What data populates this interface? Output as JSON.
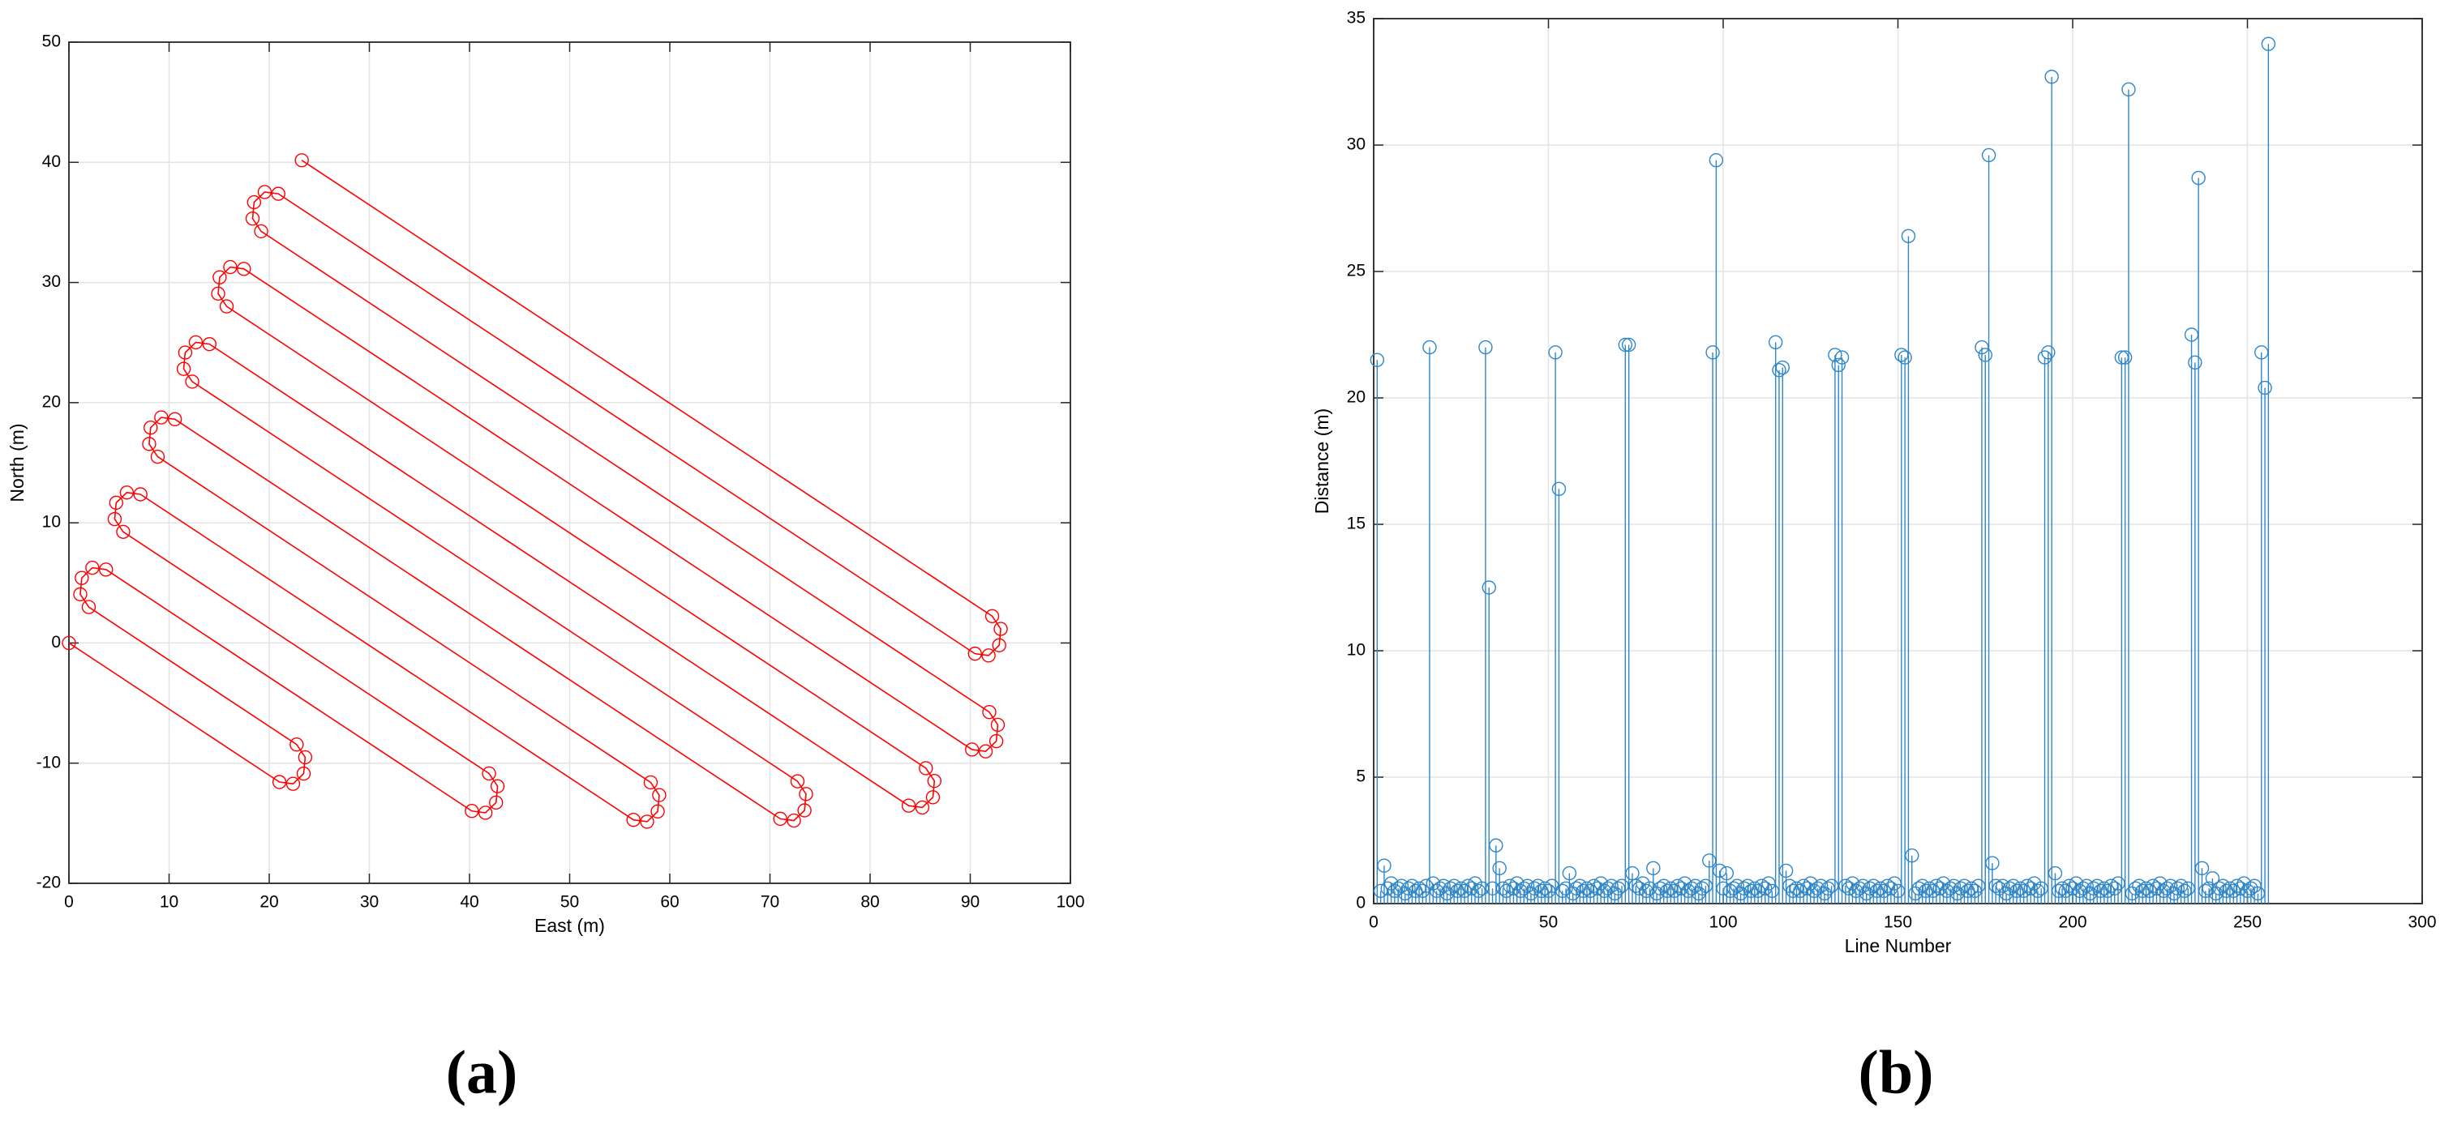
{
  "chart_data": [
    {
      "type": "line",
      "caption": "(a)",
      "x_label": "East (m)",
      "y_label": "North (m)",
      "color": "#ff0000",
      "marker": "circle",
      "grid": true,
      "x": [
        0,
        21.02,
        22.38,
        23.44,
        23.59,
        22.74,
        1.98,
        1.13,
        1.28,
        2.34,
        3.7,
        40.23,
        41.59,
        42.65,
        42.8,
        41.95,
        5.42,
        4.57,
        4.72,
        5.78,
        7.14,
        56.37,
        57.73,
        58.79,
        58.94,
        58.09,
        8.86,
        8.01,
        8.16,
        9.22,
        10.58,
        71.03,
        72.39,
        73.45,
        73.6,
        72.75,
        12.31,
        11.46,
        11.61,
        12.67,
        14.03,
        83.85,
        85.21,
        86.27,
        86.42,
        85.57,
        15.75,
        14.9,
        15.05,
        16.11,
        17.47,
        90.18,
        91.54,
        92.6,
        92.75,
        91.9,
        19.19,
        18.34,
        18.49,
        19.55,
        20.91,
        90.47,
        91.83,
        92.89,
        93.04,
        92.19,
        23.25
      ],
      "y": [
        0,
        -11.57,
        -11.72,
        -10.87,
        -9.51,
        -8.45,
        2.99,
        4.05,
        5.41,
        6.26,
        6.11,
        -13.98,
        -14.13,
        -13.28,
        -11.92,
        -10.86,
        9.25,
        10.31,
        11.67,
        12.52,
        12.37,
        -14.72,
        -14.87,
        -14.02,
        -12.66,
        -11.6,
        15.5,
        16.56,
        17.92,
        18.77,
        18.62,
        -14.63,
        -14.78,
        -13.93,
        -12.57,
        -11.51,
        21.75,
        22.81,
        24.17,
        25.02,
        24.87,
        -13.54,
        -13.69,
        -12.84,
        -11.48,
        -10.42,
        28.01,
        29.07,
        30.43,
        31.28,
        31.13,
        -8.87,
        -9.02,
        -8.17,
        -6.81,
        -5.75,
        34.26,
        35.32,
        36.68,
        37.53,
        37.38,
        -0.89,
        -1.04,
        -0.19,
        1.17,
        2.23,
        40.17
      ],
      "xlim": [
        0,
        100
      ],
      "xticks": [
        0,
        10,
        20,
        30,
        40,
        50,
        60,
        70,
        80,
        90,
        100
      ],
      "ylim": [
        -20,
        50
      ],
      "yticks": [
        -20,
        -10,
        0,
        10,
        20,
        30,
        40,
        50
      ]
    },
    {
      "type": "stem",
      "caption": "(b)",
      "x_label": "Line Number",
      "y_label": "Distance (m)",
      "color": "#2e86c9",
      "marker": "circle",
      "grid": true,
      "x": [
        1,
        2,
        3,
        4,
        5,
        6,
        7,
        8,
        9,
        10,
        11,
        12,
        13,
        14,
        15,
        16,
        17,
        18,
        19,
        20,
        21,
        22,
        23,
        24,
        25,
        26,
        27,
        28,
        29,
        30,
        31,
        32,
        33,
        34,
        35,
        36,
        37,
        38,
        39,
        40,
        41,
        42,
        43,
        44,
        45,
        46,
        47,
        48,
        49,
        50,
        51,
        52,
        53,
        54,
        55,
        56,
        57,
        58,
        59,
        60,
        61,
        62,
        63,
        64,
        65,
        66,
        67,
        68,
        69,
        70,
        71,
        72,
        73,
        74,
        75,
        76,
        77,
        78,
        79,
        80,
        81,
        82,
        83,
        84,
        85,
        86,
        87,
        88,
        89,
        90,
        91,
        92,
        93,
        94,
        95,
        96,
        97,
        98,
        99,
        100,
        101,
        102,
        103,
        104,
        105,
        106,
        107,
        108,
        109,
        110,
        111,
        112,
        113,
        114,
        115,
        116,
        117,
        118,
        119,
        120,
        121,
        122,
        123,
        124,
        125,
        126,
        127,
        128,
        129,
        130,
        131,
        132,
        133,
        134,
        135,
        136,
        137,
        138,
        139,
        140,
        141,
        142,
        143,
        144,
        145,
        146,
        147,
        148,
        149,
        150,
        151,
        152,
        153,
        154,
        155,
        156,
        157,
        158,
        159,
        160,
        161,
        162,
        163,
        164,
        165,
        166,
        167,
        168,
        169,
        170,
        171,
        172,
        173,
        174,
        175,
        176,
        177,
        178,
        179,
        180,
        181,
        182,
        183,
        184,
        185,
        186,
        187,
        188,
        189,
        190,
        191,
        192,
        193,
        194,
        195,
        196,
        197,
        198,
        199,
        200,
        201,
        202,
        203,
        204,
        205,
        206,
        207,
        208,
        209,
        210,
        211,
        212,
        213,
        214,
        215,
        216,
        217,
        218,
        219,
        220,
        221,
        222,
        223,
        224,
        225,
        226,
        227,
        228,
        229,
        230,
        231,
        232,
        233,
        234,
        235,
        236,
        237,
        238,
        239,
        240,
        241,
        242,
        243,
        244,
        245,
        246,
        247,
        248,
        249,
        250,
        251,
        252,
        253,
        254,
        255,
        256
      ],
      "values": [
        21.5,
        0.5,
        1.5,
        0.6,
        0.8,
        0.5,
        0.6,
        0.7,
        0.4,
        0.6,
        0.7,
        0.5,
        0.6,
        0.5,
        0.7,
        22.0,
        0.8,
        0.5,
        0.6,
        0.7,
        0.4,
        0.6,
        0.7,
        0.5,
        0.6,
        0.5,
        0.7,
        0.6,
        0.8,
        0.5,
        0.6,
        22.0,
        12.5,
        0.6,
        2.3,
        1.4,
        0.6,
        0.5,
        0.7,
        0.6,
        0.8,
        0.5,
        0.6,
        0.7,
        0.4,
        0.6,
        0.7,
        0.5,
        0.6,
        0.5,
        0.7,
        21.8,
        16.4,
        0.5,
        0.6,
        1.2,
        0.4,
        0.6,
        0.7,
        0.5,
        0.6,
        0.5,
        0.7,
        0.6,
        0.8,
        0.5,
        0.6,
        0.7,
        0.4,
        0.6,
        0.7,
        22.1,
        22.1,
        1.2,
        0.7,
        0.6,
        0.8,
        0.5,
        0.6,
        1.4,
        0.4,
        0.6,
        0.7,
        0.5,
        0.6,
        0.5,
        0.7,
        0.6,
        0.8,
        0.5,
        0.6,
        0.7,
        0.4,
        0.6,
        0.7,
        1.7,
        21.8,
        29.4,
        1.3,
        0.6,
        1.2,
        0.5,
        0.6,
        0.7,
        0.4,
        0.6,
        0.7,
        0.5,
        0.6,
        0.5,
        0.7,
        0.6,
        0.8,
        0.5,
        22.2,
        21.1,
        21.2,
        1.3,
        0.7,
        0.5,
        0.6,
        0.5,
        0.7,
        0.6,
        0.8,
        0.5,
        0.6,
        0.7,
        0.4,
        0.6,
        0.7,
        21.7,
        21.3,
        21.6,
        0.7,
        0.6,
        0.8,
        0.5,
        0.6,
        0.7,
        0.4,
        0.6,
        0.7,
        0.5,
        0.6,
        0.5,
        0.7,
        0.6,
        0.8,
        0.5,
        21.7,
        21.6,
        26.4,
        1.9,
        0.4,
        0.6,
        0.7,
        0.5,
        0.6,
        0.5,
        0.7,
        0.6,
        0.8,
        0.5,
        0.6,
        0.7,
        0.4,
        0.6,
        0.7,
        0.5,
        0.6,
        0.5,
        0.7,
        22.0,
        21.7,
        29.6,
        1.6,
        0.7,
        0.6,
        0.7,
        0.4,
        0.6,
        0.7,
        0.5,
        0.6,
        0.5,
        0.7,
        0.6,
        0.8,
        0.5,
        0.6,
        21.6,
        21.8,
        32.7,
        1.2,
        0.5,
        0.6,
        0.5,
        0.7,
        0.6,
        0.8,
        0.5,
        0.6,
        0.7,
        0.4,
        0.6,
        0.7,
        0.5,
        0.6,
        0.5,
        0.7,
        0.6,
        0.8,
        21.6,
        21.6,
        32.2,
        0.4,
        0.6,
        0.7,
        0.5,
        0.6,
        0.5,
        0.7,
        0.6,
        0.8,
        0.5,
        0.6,
        0.7,
        0.4,
        0.6,
        0.7,
        0.5,
        0.6,
        22.5,
        21.4,
        28.7,
        1.4,
        0.5,
        0.6,
        1.0,
        0.4,
        0.6,
        0.7,
        0.5,
        0.6,
        0.5,
        0.7,
        0.6,
        0.8,
        0.5,
        0.6,
        0.7,
        0.4,
        21.8,
        20.4,
        34.0
      ],
      "xlim": [
        0,
        300
      ],
      "xticks": [
        0,
        50,
        100,
        150,
        200,
        250,
        300
      ],
      "ylim": [
        0,
        35
      ],
      "yticks": [
        0,
        5,
        10,
        15,
        20,
        25,
        30,
        35
      ]
    }
  ]
}
